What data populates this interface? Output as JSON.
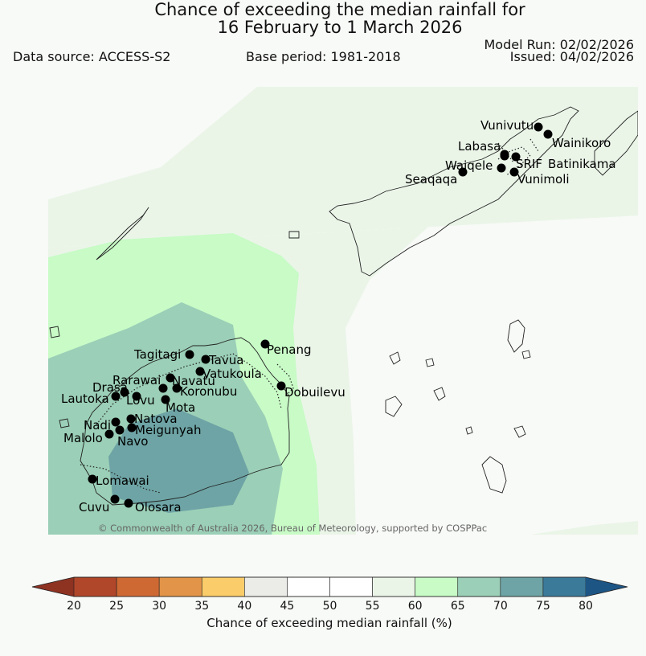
{
  "header": {
    "title_line1": "Chance of exceeding the median rainfall for",
    "title_line2": "16 February to 1 March 2026",
    "data_source": "Data source: ACCESS-S2",
    "base_period": "Base period: 1981-2018",
    "model_run": "Model Run: 02/02/2026",
    "issued": "Issued: 04/02/2026"
  },
  "map": {
    "copyright": "© Commonwealth of Australia 2026, Bureau of Meteorology, supported by COSPPac",
    "stations": [
      "Vunivutu",
      "Wainikoro",
      "Labasa",
      "Waiqele",
      "SRIF",
      "Batinikama",
      "Seaqaqa",
      "Vunimoli",
      "Penang",
      "Tagitagi",
      "Tavua",
      "Vatukoula",
      "Rarawai",
      "Navatu",
      "Drasa",
      "Koronubu",
      "Lautoka",
      "Lovu",
      "Mota",
      "Dobuilevu",
      "Natova",
      "Nadi",
      "Meigunyah",
      "Malolo",
      "Navo",
      "Lomawai",
      "Cuvu",
      "Olosara"
    ]
  },
  "colorbar": {
    "title": "Chance of exceeding median rainfall (%)",
    "ticks": [
      "20",
      "25",
      "30",
      "35",
      "40",
      "45",
      "50",
      "55",
      "60",
      "65",
      "70",
      "75",
      "80"
    ],
    "colors": [
      "#b0462a",
      "#cf6934",
      "#e29448",
      "#fbcd6a",
      "#ebebe8",
      "#ffffff",
      "#ffffff",
      "#eaf5e8",
      "#c8fbc6",
      "#9bcfb7",
      "#6ea4a5",
      "#3c7a9a"
    ],
    "under_color": "#8e3222",
    "over_color": "#1d5585"
  }
}
